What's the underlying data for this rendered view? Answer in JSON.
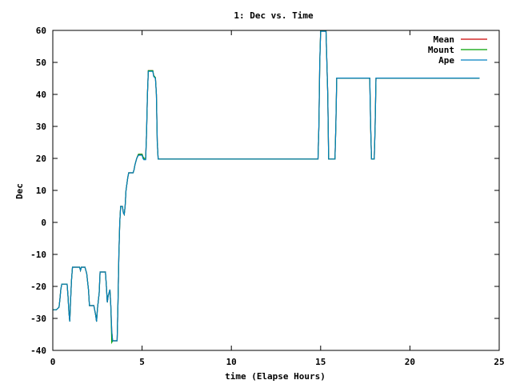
{
  "chart_data": {
    "type": "line",
    "title": "1: Dec vs. Time",
    "xlabel": "time (Elapse Hours)",
    "ylabel": "Dec",
    "xlim": [
      0,
      25
    ],
    "ylim": [
      -40,
      60
    ],
    "xticks": [
      0,
      5,
      10,
      15,
      20,
      25
    ],
    "yticks": [
      -40,
      -30,
      -20,
      -10,
      0,
      10,
      20,
      30,
      40,
      50,
      60
    ],
    "grid": false,
    "legend_position": "top-right",
    "series": [
      {
        "name": "Mean",
        "color": "#cc0000",
        "points": [
          [
            0.0,
            -27.3
          ],
          [
            0.2,
            -27.3
          ],
          [
            0.35,
            -26.5
          ],
          [
            0.4,
            -24
          ],
          [
            0.45,
            -21
          ],
          [
            0.5,
            -19.3
          ],
          [
            0.8,
            -19.3
          ],
          [
            0.85,
            -23
          ],
          [
            0.9,
            -28
          ],
          [
            0.95,
            -31
          ],
          [
            1.0,
            -24
          ],
          [
            1.05,
            -18
          ],
          [
            1.1,
            -14
          ],
          [
            1.5,
            -14
          ],
          [
            1.55,
            -15
          ],
          [
            1.6,
            -14
          ],
          [
            1.8,
            -14
          ],
          [
            1.9,
            -16
          ],
          [
            2.0,
            -21
          ],
          [
            2.05,
            -26
          ],
          [
            2.3,
            -26
          ],
          [
            2.4,
            -29
          ],
          [
            2.45,
            -31
          ],
          [
            2.5,
            -27
          ],
          [
            2.6,
            -22
          ],
          [
            2.65,
            -15.5
          ],
          [
            2.95,
            -15.5
          ],
          [
            3.0,
            -20
          ],
          [
            3.05,
            -25
          ],
          [
            3.1,
            -23
          ],
          [
            3.15,
            -22
          ],
          [
            3.2,
            -21
          ],
          [
            3.25,
            -26
          ],
          [
            3.3,
            -34
          ],
          [
            3.35,
            -37
          ],
          [
            3.6,
            -37
          ],
          [
            3.65,
            -25
          ],
          [
            3.7,
            -10
          ],
          [
            3.75,
            0
          ],
          [
            3.8,
            5
          ],
          [
            3.9,
            5
          ],
          [
            3.95,
            3
          ],
          [
            4.0,
            2.5
          ],
          [
            4.05,
            5
          ],
          [
            4.1,
            10
          ],
          [
            4.2,
            14
          ],
          [
            4.25,
            15.5
          ],
          [
            4.4,
            15.5
          ],
          [
            4.5,
            15.5
          ],
          [
            4.55,
            16.5
          ],
          [
            4.6,
            18
          ],
          [
            4.7,
            20
          ],
          [
            4.8,
            21.3
          ],
          [
            5.0,
            21.3
          ],
          [
            5.05,
            20.5
          ],
          [
            5.1,
            20
          ],
          [
            5.2,
            20
          ],
          [
            5.25,
            28
          ],
          [
            5.3,
            40
          ],
          [
            5.35,
            47.4
          ],
          [
            5.6,
            47.4
          ],
          [
            5.65,
            45.9
          ],
          [
            5.75,
            45.2
          ],
          [
            5.8,
            40
          ],
          [
            5.85,
            25
          ],
          [
            5.9,
            19.8
          ],
          [
            14.85,
            19.8
          ],
          [
            14.9,
            30
          ],
          [
            14.95,
            50
          ],
          [
            15.0,
            59.9
          ],
          [
            15.3,
            59.9
          ],
          [
            15.4,
            40
          ],
          [
            15.45,
            19.8
          ],
          [
            15.8,
            19.8
          ],
          [
            15.85,
            30
          ],
          [
            15.9,
            45.1
          ],
          [
            17.75,
            45.1
          ],
          [
            17.8,
            30
          ],
          [
            17.85,
            19.8
          ],
          [
            18.0,
            19.8
          ],
          [
            18.05,
            30
          ],
          [
            18.1,
            45.1
          ],
          [
            23.9,
            45.1
          ]
        ]
      },
      {
        "name": "Mount",
        "color": "#00a000",
        "points": [
          [
            0.0,
            -27.3
          ],
          [
            0.2,
            -27.3
          ],
          [
            0.35,
            -26.5
          ],
          [
            0.4,
            -24
          ],
          [
            0.45,
            -21
          ],
          [
            0.5,
            -19.3
          ],
          [
            0.8,
            -19.3
          ],
          [
            0.85,
            -23
          ],
          [
            0.9,
            -28
          ],
          [
            0.95,
            -31
          ],
          [
            1.0,
            -24
          ],
          [
            1.05,
            -18
          ],
          [
            1.1,
            -14
          ],
          [
            1.5,
            -14
          ],
          [
            1.55,
            -15
          ],
          [
            1.6,
            -14
          ],
          [
            1.8,
            -14
          ],
          [
            1.9,
            -16
          ],
          [
            2.0,
            -21
          ],
          [
            2.05,
            -26
          ],
          [
            2.3,
            -26
          ],
          [
            2.4,
            -29
          ],
          [
            2.45,
            -31
          ],
          [
            2.5,
            -27
          ],
          [
            2.6,
            -22
          ],
          [
            2.65,
            -15.5
          ],
          [
            2.95,
            -15.5
          ],
          [
            3.0,
            -20
          ],
          [
            3.05,
            -25
          ],
          [
            3.1,
            -23
          ],
          [
            3.15,
            -22
          ],
          [
            3.2,
            -21
          ],
          [
            3.25,
            -26
          ],
          [
            3.3,
            -37.5
          ],
          [
            3.35,
            -37
          ],
          [
            3.6,
            -37
          ],
          [
            3.65,
            -25
          ],
          [
            3.7,
            -10
          ],
          [
            3.75,
            0
          ],
          [
            3.8,
            5
          ],
          [
            3.9,
            5
          ],
          [
            3.95,
            3
          ],
          [
            4.0,
            2.5
          ],
          [
            4.05,
            5
          ],
          [
            4.1,
            10
          ],
          [
            4.2,
            14
          ],
          [
            4.25,
            15.5
          ],
          [
            4.4,
            15.5
          ],
          [
            4.5,
            15.5
          ],
          [
            4.55,
            16.5
          ],
          [
            4.6,
            18
          ],
          [
            4.7,
            20
          ],
          [
            4.8,
            21.3
          ],
          [
            5.0,
            21.3
          ],
          [
            5.05,
            20.5
          ],
          [
            5.1,
            20
          ],
          [
            5.2,
            20
          ],
          [
            5.25,
            28
          ],
          [
            5.3,
            40
          ],
          [
            5.35,
            47.4
          ],
          [
            5.6,
            47.4
          ],
          [
            5.65,
            45.9
          ],
          [
            5.75,
            45.2
          ],
          [
            5.8,
            40
          ],
          [
            5.85,
            25
          ],
          [
            5.9,
            19.8
          ],
          [
            14.85,
            19.8
          ],
          [
            14.9,
            30
          ],
          [
            14.95,
            50
          ],
          [
            15.0,
            59.9
          ],
          [
            15.3,
            59.9
          ],
          [
            15.4,
            40
          ],
          [
            15.45,
            19.8
          ],
          [
            15.8,
            19.8
          ],
          [
            15.85,
            30
          ],
          [
            15.9,
            45.1
          ],
          [
            17.75,
            45.1
          ],
          [
            17.8,
            30
          ],
          [
            17.85,
            19.8
          ],
          [
            18.0,
            19.8
          ],
          [
            18.05,
            30
          ],
          [
            18.1,
            45.1
          ],
          [
            23.9,
            45.1
          ]
        ]
      },
      {
        "name": "Ape",
        "color": "#0080c0",
        "points": [
          [
            0.0,
            -27.3
          ],
          [
            0.2,
            -27.3
          ],
          [
            0.35,
            -26.5
          ],
          [
            0.4,
            -24
          ],
          [
            0.45,
            -21
          ],
          [
            0.5,
            -19.3
          ],
          [
            0.8,
            -19.3
          ],
          [
            0.85,
            -23
          ],
          [
            0.9,
            -28
          ],
          [
            0.95,
            -31
          ],
          [
            1.0,
            -24
          ],
          [
            1.05,
            -18
          ],
          [
            1.1,
            -14
          ],
          [
            1.5,
            -14
          ],
          [
            1.55,
            -15
          ],
          [
            1.6,
            -14
          ],
          [
            1.8,
            -14
          ],
          [
            1.9,
            -16
          ],
          [
            2.0,
            -21
          ],
          [
            2.05,
            -26
          ],
          [
            2.3,
            -26
          ],
          [
            2.4,
            -29
          ],
          [
            2.45,
            -31
          ],
          [
            2.5,
            -27
          ],
          [
            2.6,
            -22
          ],
          [
            2.65,
            -15.5
          ],
          [
            2.95,
            -15.5
          ],
          [
            3.0,
            -20
          ],
          [
            3.05,
            -25
          ],
          [
            3.1,
            -23
          ],
          [
            3.15,
            -22
          ],
          [
            3.2,
            -21
          ],
          [
            3.25,
            -26
          ],
          [
            3.3,
            -34
          ],
          [
            3.35,
            -37
          ],
          [
            3.6,
            -37
          ],
          [
            3.65,
            -25
          ],
          [
            3.7,
            -10
          ],
          [
            3.75,
            0
          ],
          [
            3.8,
            5
          ],
          [
            3.9,
            5
          ],
          [
            3.95,
            3
          ],
          [
            4.0,
            2.5
          ],
          [
            4.05,
            5
          ],
          [
            4.1,
            10
          ],
          [
            4.2,
            14
          ],
          [
            4.25,
            15.5
          ],
          [
            4.4,
            15.5
          ],
          [
            4.5,
            15.5
          ],
          [
            4.55,
            16.5
          ],
          [
            4.6,
            18
          ],
          [
            4.7,
            20
          ],
          [
            4.8,
            21
          ],
          [
            5.0,
            21
          ],
          [
            5.05,
            20
          ],
          [
            5.1,
            19.6
          ],
          [
            5.2,
            19.6
          ],
          [
            5.25,
            28
          ],
          [
            5.3,
            40
          ],
          [
            5.35,
            47.2
          ],
          [
            5.6,
            47.2
          ],
          [
            5.65,
            45.6
          ],
          [
            5.75,
            45
          ],
          [
            5.8,
            40
          ],
          [
            5.85,
            25
          ],
          [
            5.9,
            19.8
          ],
          [
            14.85,
            19.8
          ],
          [
            14.9,
            30
          ],
          [
            14.95,
            50
          ],
          [
            15.0,
            59.7
          ],
          [
            15.3,
            59.7
          ],
          [
            15.4,
            40
          ],
          [
            15.45,
            19.8
          ],
          [
            15.8,
            19.8
          ],
          [
            15.85,
            30
          ],
          [
            15.9,
            45.1
          ],
          [
            17.75,
            45.1
          ],
          [
            17.8,
            30
          ],
          [
            17.85,
            19.8
          ],
          [
            18.0,
            19.8
          ],
          [
            18.05,
            30
          ],
          [
            18.1,
            45.1
          ],
          [
            23.9,
            45.1
          ]
        ]
      }
    ]
  }
}
